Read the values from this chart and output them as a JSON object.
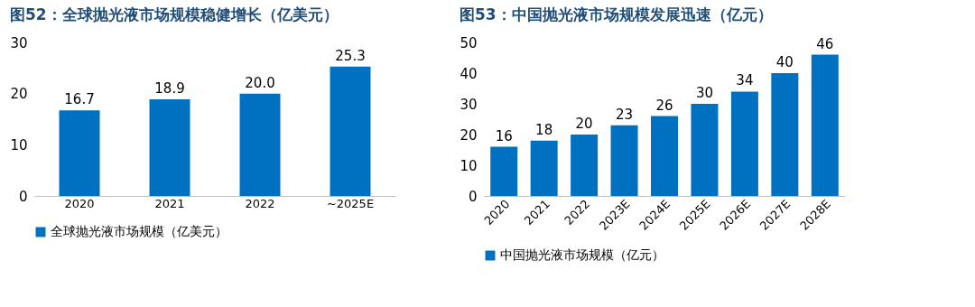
{
  "chart_data": [
    {
      "type": "bar",
      "title": "图52：全球抛光液市场规模稳健增长（亿美元）",
      "categories": [
        "2020",
        "2021",
        "2022",
        "~2025E"
      ],
      "series": [
        {
          "name": "全球抛光液市场规模（亿美元）",
          "color": "#0070c0",
          "values": [
            16.7,
            18.9,
            20.0,
            25.3
          ]
        }
      ],
      "value_labels": [
        "16.7",
        "18.9",
        "20.0",
        "25.3"
      ],
      "ylim": [
        0,
        30
      ],
      "yticks": [
        0,
        10,
        20,
        30
      ],
      "legend": "bottom"
    },
    {
      "type": "bar",
      "title": "图53：中国抛光液市场规模发展迅速（亿元）",
      "categories": [
        "2020",
        "2021",
        "2022",
        "2023E",
        "2024E",
        "2025E",
        "2026E",
        "2027E",
        "2028E"
      ],
      "series": [
        {
          "name": "中国抛光液市场规模（亿元）",
          "color": "#0070c0",
          "values": [
            16,
            18,
            20,
            23,
            26,
            30,
            34,
            40,
            46
          ]
        }
      ],
      "data_labels": true,
      "ylim": [
        0,
        50
      ],
      "yticks": [
        0,
        10,
        20,
        30,
        40,
        50
      ],
      "legend": "bottom"
    }
  ]
}
